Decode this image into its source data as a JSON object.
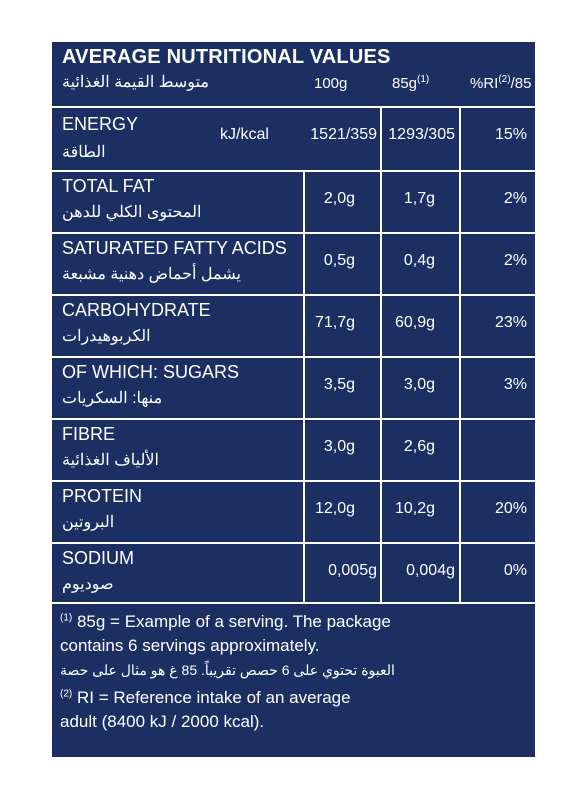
{
  "header": {
    "title": "AVERAGE NUTRITIONAL VALUES",
    "title_ar": "متوسط القيمة الغذائية",
    "col_100": "100g",
    "col_85": "85g",
    "col_85_sup": "(1)",
    "col_ri_pre": "%RI",
    "col_ri_sup": "(2)",
    "col_ri_post": "/85"
  },
  "rows": [
    {
      "name": "ENERGY",
      "name_ar": "الطاقة",
      "unit": "kJ/kcal",
      "v100": "1521/359",
      "v85": "1293/305",
      "ri": "15%"
    },
    {
      "name": "TOTAL FAT",
      "name_ar": "المحتوى الكلي للدهن",
      "v100": "2,0g",
      "v85": "1,7g",
      "ri": "2%"
    },
    {
      "name": "SATURATED FATTY ACIDS",
      "name_ar": "يشمل أحماض دهنية مشبعة",
      "v100": "0,5g",
      "v85": "0,4g",
      "ri": "2%"
    },
    {
      "name": "CARBOHYDRATE",
      "name_ar": "الكربوهيدرات",
      "v100": "71,7g",
      "v85": "60,9g",
      "ri": "23%"
    },
    {
      "name": "OF WHICH: SUGARS",
      "name_ar": "منها: السكريات",
      "v100": "3,5g",
      "v85": "3,0g",
      "ri": "3%"
    },
    {
      "name": "FIBRE",
      "name_ar": "الألياف الغذائية",
      "v100": "3,0g",
      "v85": "2,6g",
      "ri": ""
    },
    {
      "name": "PROTEIN",
      "name_ar": "البروتين",
      "v100": "12,0g",
      "v85": "10,2g",
      "ri": "20%"
    },
    {
      "name": "SODIUM",
      "name_ar": "صوديوم",
      "v100": "0,005g",
      "v85": "0,004g",
      "ri": "0%"
    }
  ],
  "footnotes": {
    "fn1_sup": "(1)",
    "fn1_line1": "85g = Example of a serving. The package",
    "fn1_line2": "contains 6 servings approximately.",
    "fn1_ar": "العبوة تحتوي على 6 حصص تقريباً. 85 غ هو مثال على حصة",
    "fn2_sup": "(2)",
    "fn2_line1": "RI = Reference intake of an average",
    "fn2_line2": "adult (8400 kJ / 2000 kcal)."
  },
  "colors": {
    "panel": "#1b2f63",
    "text": "#ffffff",
    "page": "#ffffff"
  }
}
